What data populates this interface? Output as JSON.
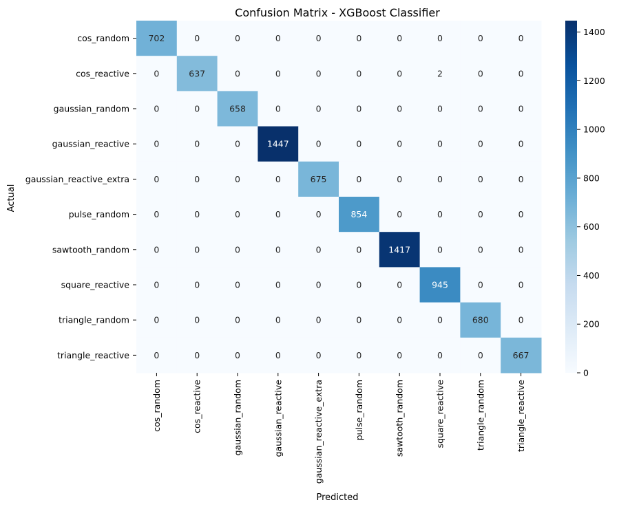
{
  "chart_data": {
    "type": "heatmap",
    "title": "Confusion Matrix - XGBoost Classifier",
    "xlabel": "Predicted",
    "ylabel": "Actual",
    "x_categories": [
      "cos_random",
      "cos_reactive",
      "gaussian_random",
      "gaussian_reactive",
      "gaussian_reactive_extra",
      "pulse_random",
      "sawtooth_random",
      "square_reactive",
      "triangle_random",
      "triangle_reactive"
    ],
    "y_categories": [
      "cos_random",
      "cos_reactive",
      "gaussian_random",
      "gaussian_reactive",
      "gaussian_reactive_extra",
      "pulse_random",
      "sawtooth_random",
      "square_reactive",
      "triangle_random",
      "triangle_reactive"
    ],
    "matrix": [
      [
        702,
        0,
        0,
        0,
        0,
        0,
        0,
        0,
        0,
        0
      ],
      [
        0,
        637,
        0,
        0,
        0,
        0,
        0,
        2,
        0,
        0
      ],
      [
        0,
        0,
        658,
        0,
        0,
        0,
        0,
        0,
        0,
        0
      ],
      [
        0,
        0,
        0,
        1447,
        0,
        0,
        0,
        0,
        0,
        0
      ],
      [
        0,
        0,
        0,
        0,
        675,
        0,
        0,
        0,
        0,
        0
      ],
      [
        0,
        0,
        0,
        0,
        0,
        854,
        0,
        0,
        0,
        0
      ],
      [
        0,
        0,
        0,
        0,
        0,
        0,
        1417,
        0,
        0,
        0
      ],
      [
        0,
        0,
        0,
        0,
        0,
        0,
        0,
        945,
        0,
        0
      ],
      [
        0,
        0,
        0,
        0,
        0,
        0,
        0,
        0,
        680,
        0
      ],
      [
        0,
        0,
        0,
        0,
        0,
        0,
        0,
        0,
        0,
        667
      ]
    ],
    "colormap": "Blues",
    "colorbar_range": [
      0,
      1447
    ],
    "colorbar_ticks": [
      0,
      200,
      400,
      600,
      800,
      1000,
      1200,
      1400
    ]
  },
  "colors": {
    "low": "#f7fbff",
    "high": "#08306b",
    "text_dark": "#262626",
    "text_light": "#ffffff"
  }
}
